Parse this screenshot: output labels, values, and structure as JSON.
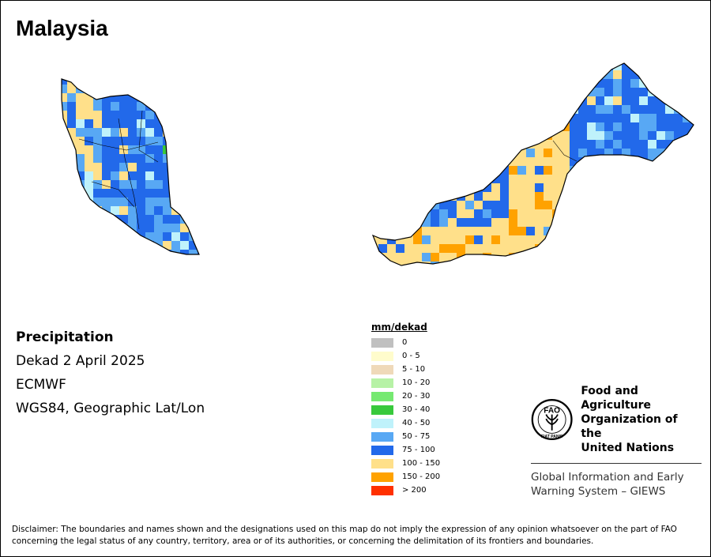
{
  "map": {
    "title": "Malaysia",
    "variable": "Precipitation",
    "period": "Dekad 2 April 2025",
    "source": "ECMWF",
    "projection": "WGS84, Geographic Lat/Lon"
  },
  "legend": {
    "title": "mm/dekad",
    "classes": [
      {
        "label": "0",
        "color": "#c0c0c0"
      },
      {
        "label": "0 - 5",
        "color": "#fffccc"
      },
      {
        "label": "5 - 10",
        "color": "#efd9b9"
      },
      {
        "label": "10 - 20",
        "color": "#b7f2a6"
      },
      {
        "label": "20 - 30",
        "color": "#76e971"
      },
      {
        "label": "30 - 40",
        "color": "#38c93c"
      },
      {
        "label": "40 - 50",
        "color": "#bff2fb"
      },
      {
        "label": "50 - 75",
        "color": "#58a8f4"
      },
      {
        "label": "75 - 100",
        "color": "#2269ea"
      },
      {
        "label": "100 - 150",
        "color": "#ffe08a"
      },
      {
        "label": "150 - 200",
        "color": "#ffa200"
      },
      {
        "label": "> 200",
        "color": "#ff3000"
      }
    ]
  },
  "logo": {
    "org_name_lines": [
      "Food and Agriculture",
      "Organization of the",
      "United Nations"
    ],
    "emblem_text": "FAO",
    "emblem_motto": "FIAT PANIS",
    "system_lines": [
      "Global Information and Early",
      "Warning System – GIEWS"
    ]
  },
  "disclaimer": "Disclaimer: The boundaries and names shown and the designations used on this map do not imply the expression of any opinion whatsoever on the part of FAO concerning the legal status of any country, territory, area or of its authorities, or concerning the delimitation of its frontiers and boundaries."
}
